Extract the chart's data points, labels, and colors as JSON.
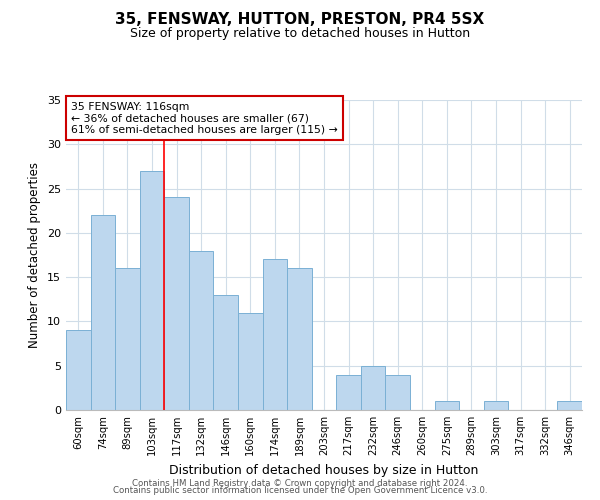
{
  "title": "35, FENSWAY, HUTTON, PRESTON, PR4 5SX",
  "subtitle": "Size of property relative to detached houses in Hutton",
  "xlabel": "Distribution of detached houses by size in Hutton",
  "ylabel": "Number of detached properties",
  "bar_labels": [
    "60sqm",
    "74sqm",
    "89sqm",
    "103sqm",
    "117sqm",
    "132sqm",
    "146sqm",
    "160sqm",
    "174sqm",
    "189sqm",
    "203sqm",
    "217sqm",
    "232sqm",
    "246sqm",
    "260sqm",
    "275sqm",
    "289sqm",
    "303sqm",
    "317sqm",
    "332sqm",
    "346sqm"
  ],
  "bar_values": [
    9,
    22,
    16,
    27,
    24,
    18,
    13,
    11,
    17,
    16,
    0,
    4,
    5,
    4,
    0,
    1,
    0,
    1,
    0,
    0,
    1
  ],
  "bar_color": "#bdd7ee",
  "bar_edge_color": "#7ab0d4",
  "red_line_index": 4,
  "red_line_label": "35 FENSWAY: 116sqm",
  "annotation_line1": "← 36% of detached houses are smaller (67)",
  "annotation_line2": "61% of semi-detached houses are larger (115) →",
  "annotation_box_color": "#ffffff",
  "annotation_box_edge": "#cc0000",
  "ylim": [
    0,
    35
  ],
  "yticks": [
    0,
    5,
    10,
    15,
    20,
    25,
    30,
    35
  ],
  "footer1": "Contains HM Land Registry data © Crown copyright and database right 2024.",
  "footer2": "Contains public sector information licensed under the Open Government Licence v3.0.",
  "bg_color": "#ffffff",
  "grid_color": "#d0dde8",
  "title_fontsize": 11,
  "subtitle_fontsize": 9,
  "ylabel_fontsize": 8.5,
  "xlabel_fontsize": 9
}
